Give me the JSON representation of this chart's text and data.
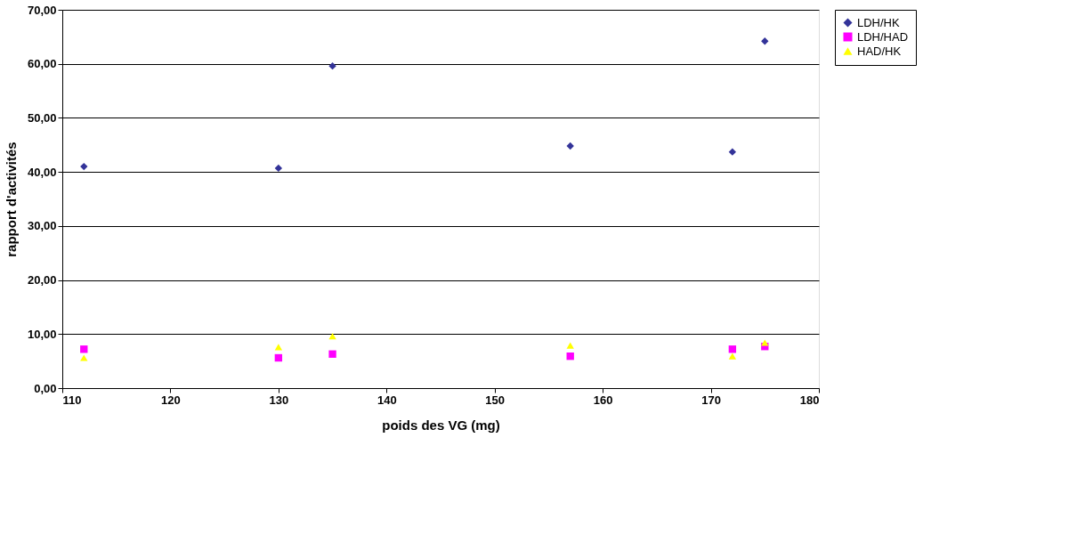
{
  "chart_data": {
    "type": "scatter",
    "xlabel": "poids des VG (mg)",
    "ylabel": "rapport d'activités",
    "x": [
      112,
      130,
      135,
      157,
      172,
      175
    ],
    "series": [
      {
        "name": "LDH/HK",
        "color": "#333399",
        "marker": "diamond",
        "values": [
          41.0,
          40.7,
          59.6,
          44.8,
          43.7,
          64.2
        ]
      },
      {
        "name": "LDH/HAD",
        "color": "#ff00ff",
        "marker": "square",
        "values": [
          7.2,
          5.6,
          6.3,
          5.9,
          7.2,
          7.7
        ]
      },
      {
        "name": "HAD/HK",
        "color": "#ffff00",
        "marker": "triangle",
        "values": [
          5.6,
          7.6,
          9.6,
          7.9,
          5.9,
          8.4
        ]
      }
    ],
    "xlim": [
      110,
      180
    ],
    "xticks": [
      110,
      120,
      130,
      140,
      150,
      160,
      170,
      180
    ],
    "ylim": [
      0,
      70
    ],
    "yticks": [
      {
        "value": 0,
        "label": "0,00"
      },
      {
        "value": 10,
        "label": "10,00"
      },
      {
        "value": 20,
        "label": "20,00"
      },
      {
        "value": 30,
        "label": "30,00"
      },
      {
        "value": 40,
        "label": "40,00"
      },
      {
        "value": 50,
        "label": "50,00"
      },
      {
        "value": 60,
        "label": "60,00"
      },
      {
        "value": 70,
        "label": "70,00"
      }
    ],
    "grid": "y",
    "legend": "right"
  }
}
